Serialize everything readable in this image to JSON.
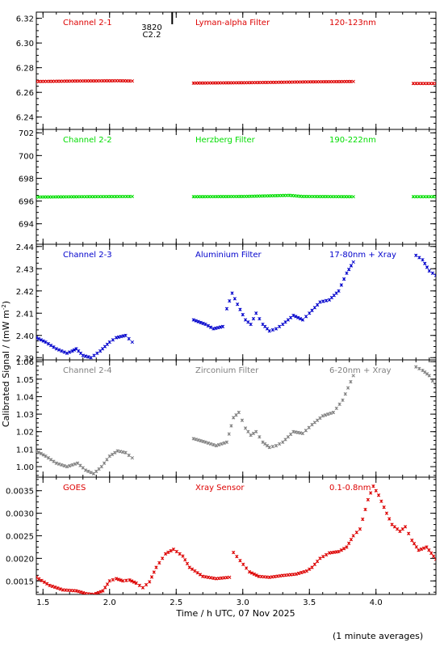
{
  "figure": {
    "ylabel": "Calibrated Signal / (mW m",
    "ylabel_sup": "-2",
    "ylabel_end": ")",
    "xlabel": "Time / h UTC, 07 Nov 2025",
    "footnote": "(1 minute averages)",
    "marker_label_top": "3820",
    "marker_label_bottom": "C2.2"
  },
  "chart_data": [
    {
      "type": "scatter",
      "labels": [
        "Channel 2-1",
        "Lyman-alpha Filter",
        "120-123nm"
      ],
      "color": "#dd0000",
      "xlim": [
        1.45,
        4.45
      ],
      "ylim": [
        6.23,
        6.325
      ],
      "yticks": [
        6.24,
        6.26,
        6.28,
        6.3,
        6.32
      ],
      "ytick_labels": [
        "6.24",
        "6.26",
        "6.28",
        "6.30",
        "6.32"
      ],
      "segments": [
        {
          "x": [
            1.45,
            1.75,
            2.07,
            2.17
          ],
          "y": [
            6.2688,
            6.2692,
            6.2694,
            6.2692
          ]
        },
        {
          "x": [
            2.63,
            3.0,
            3.5,
            3.83
          ],
          "y": [
            6.2675,
            6.2678,
            6.2685,
            6.2688
          ]
        },
        {
          "x": [
            4.28,
            4.45
          ],
          "y": [
            6.2672,
            6.2672
          ]
        }
      ]
    },
    {
      "type": "scatter",
      "labels": [
        "Channel 2-2",
        "Herzberg Filter",
        "190-222nm"
      ],
      "color": "#00dd00",
      "xlim": [
        1.45,
        4.45
      ],
      "ylim": [
        692.2,
        702.3
      ],
      "yticks": [
        694,
        696,
        698,
        700,
        702
      ],
      "ytick_labels": [
        "694",
        "696",
        "698",
        "700",
        "702"
      ],
      "segments": [
        {
          "x": [
            1.45,
            1.8,
            2.17
          ],
          "y": [
            696.35,
            696.38,
            696.4
          ]
        },
        {
          "x": [
            2.63,
            3.0,
            3.35,
            3.45,
            3.83
          ],
          "y": [
            696.38,
            696.4,
            696.5,
            696.4,
            696.38
          ]
        },
        {
          "x": [
            4.28,
            4.45
          ],
          "y": [
            696.38,
            696.38
          ]
        }
      ]
    },
    {
      "type": "scatter",
      "labels": [
        "Channel 2-3",
        "Aluminium Filter",
        "17-80nm + Xray"
      ],
      "color": "#0000cc",
      "xlim": [
        1.45,
        4.45
      ],
      "ylim": [
        2.389,
        2.441
      ],
      "yticks": [
        2.39,
        2.4,
        2.41,
        2.42,
        2.43,
        2.44
      ],
      "ytick_labels": [
        "2.39",
        "2.40",
        "2.41",
        "2.42",
        "2.43",
        "2.44"
      ],
      "segments": [
        {
          "x": [
            1.45,
            1.52,
            1.6,
            1.68,
            1.72,
            1.75,
            1.8,
            1.86,
            1.93,
            2.0,
            2.05,
            2.12,
            2.17
          ],
          "y": [
            2.399,
            2.397,
            2.394,
            2.392,
            2.393,
            2.394,
            2.391,
            2.39,
            2.393,
            2.397,
            2.399,
            2.4,
            2.397
          ]
        },
        {
          "x": [
            2.63,
            2.72,
            2.78,
            2.85,
            2.88,
            2.92,
            2.96,
            3.02,
            3.06,
            3.1,
            3.15,
            3.2,
            3.25,
            3.3,
            3.38,
            3.45,
            3.5,
            3.58,
            3.65,
            3.72,
            3.78,
            3.83
          ],
          "y": [
            2.407,
            2.405,
            2.403,
            2.404,
            2.412,
            2.419,
            2.414,
            2.407,
            2.405,
            2.41,
            2.405,
            2.402,
            2.403,
            2.405,
            2.409,
            2.407,
            2.41,
            2.415,
            2.416,
            2.42,
            2.428,
            2.433
          ]
        },
        {
          "x": [
            4.3,
            4.35,
            4.4,
            4.45
          ],
          "y": [
            2.436,
            2.434,
            2.429,
            2.427
          ]
        }
      ]
    },
    {
      "type": "scatter",
      "labels": [
        "Channel 2-4",
        "Zirconium Filter",
        "6-20nm + Xray"
      ],
      "color": "#808080",
      "xlim": [
        1.45,
        4.45
      ],
      "ylim": [
        0.994,
        1.061
      ],
      "yticks": [
        1.0,
        1.01,
        1.02,
        1.03,
        1.04,
        1.05,
        1.06
      ],
      "ytick_labels": [
        "1.00",
        "1.01",
        "1.02",
        "1.03",
        "1.04",
        "1.05",
        "1.06"
      ],
      "segments": [
        {
          "x": [
            1.45,
            1.52,
            1.6,
            1.68,
            1.72,
            1.76,
            1.82,
            1.88,
            1.94,
            2.0,
            2.06,
            2.12,
            2.17
          ],
          "y": [
            1.009,
            1.006,
            1.002,
            1.0,
            1.001,
            1.002,
            0.998,
            0.996,
            1.0,
            1.006,
            1.009,
            1.008,
            1.005
          ]
        },
        {
          "x": [
            2.63,
            2.72,
            2.8,
            2.88,
            2.93,
            2.97,
            3.02,
            3.06,
            3.1,
            3.15,
            3.2,
            3.25,
            3.3,
            3.38,
            3.45,
            3.52,
            3.6,
            3.68,
            3.75,
            3.83
          ],
          "y": [
            1.016,
            1.014,
            1.012,
            1.014,
            1.028,
            1.031,
            1.022,
            1.018,
            1.02,
            1.014,
            1.011,
            1.012,
            1.014,
            1.02,
            1.019,
            1.024,
            1.029,
            1.031,
            1.038,
            1.052
          ]
        },
        {
          "x": [
            4.3,
            4.35,
            4.4,
            4.45
          ],
          "y": [
            1.057,
            1.055,
            1.052,
            1.046
          ]
        }
      ]
    },
    {
      "type": "scatter",
      "labels": [
        "GOES",
        "Xray Sensor",
        "0.1-0.8nm"
      ],
      "color": "#dd0000",
      "xlim": [
        1.45,
        4.45
      ],
      "ylim": [
        0.0012,
        0.0038
      ],
      "yticks": [
        0.0015,
        0.002,
        0.0025,
        0.003,
        0.0035
      ],
      "ytick_labels": [
        "0.0015",
        "0.0020",
        "0.0025",
        "0.0030",
        "0.0035"
      ],
      "segments": [
        {
          "x": [
            1.45,
            1.55,
            1.65,
            1.75,
            1.82,
            1.88,
            1.95,
            2.0,
            2.05,
            2.1,
            2.15,
            2.2,
            2.25,
            2.3,
            2.35,
            2.42,
            2.48,
            2.55,
            2.6,
            2.7,
            2.8,
            2.9
          ],
          "y": [
            0.00158,
            0.0014,
            0.0013,
            0.00128,
            0.00122,
            0.0012,
            0.00128,
            0.0015,
            0.00155,
            0.0015,
            0.00152,
            0.00145,
            0.00135,
            0.00148,
            0.0018,
            0.0021,
            0.0022,
            0.00205,
            0.0018,
            0.0016,
            0.00155,
            0.00158
          ]
        },
        {
          "x": [
            2.93,
            2.98,
            3.05,
            3.12,
            3.2,
            3.3,
            3.4,
            3.48,
            3.52,
            3.58,
            3.65,
            3.72,
            3.78,
            3.83,
            3.88,
            3.94,
            3.98,
            4.02,
            4.08,
            4.12,
            4.18,
            4.22,
            4.27,
            4.32,
            4.38,
            4.45
          ],
          "y": [
            0.00213,
            0.00195,
            0.0017,
            0.0016,
            0.00158,
            0.00162,
            0.00165,
            0.00172,
            0.0018,
            0.002,
            0.00212,
            0.00215,
            0.00225,
            0.0025,
            0.00265,
            0.0033,
            0.0036,
            0.0034,
            0.003,
            0.00275,
            0.0026,
            0.0027,
            0.0024,
            0.00218,
            0.00225,
            0.00198
          ]
        }
      ]
    }
  ],
  "x_axis": {
    "xlim": [
      1.45,
      4.45
    ],
    "ticks": [
      1.5,
      2.0,
      2.5,
      3.0,
      3.5,
      4.0
    ],
    "tick_labels": [
      "1.5",
      "2.0",
      "2.5",
      "3.0",
      "3.5",
      "4.0"
    ],
    "marker_x": 2.47
  }
}
